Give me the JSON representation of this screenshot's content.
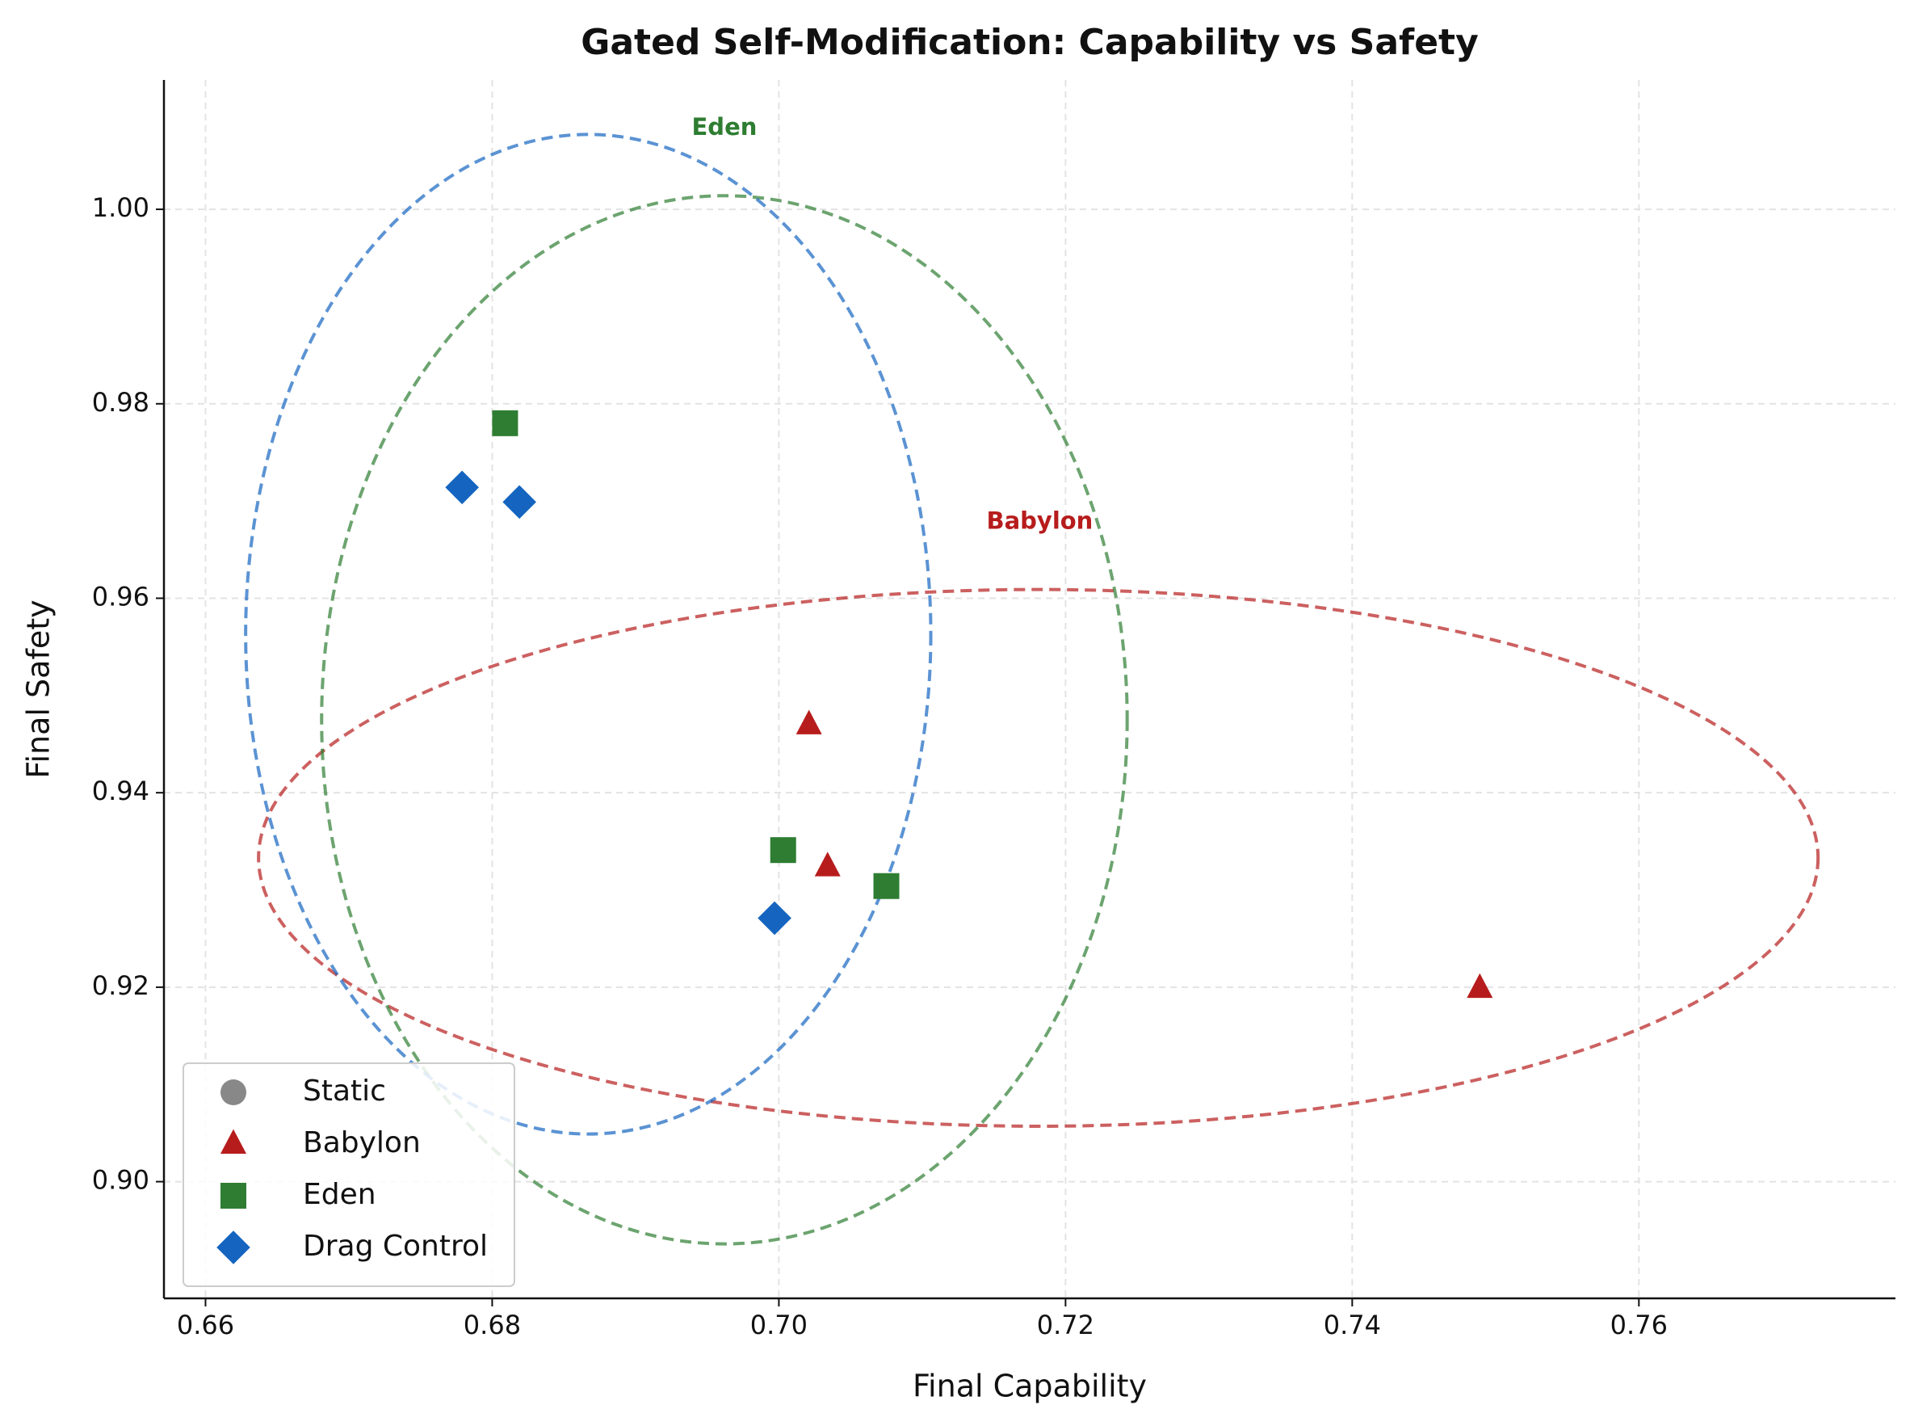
{
  "chart_data": {
    "type": "scatter",
    "title": "Gated Self-Modification: Capability vs Safety",
    "x_label": "Final Capability",
    "y_label": "Final Safety",
    "xlim": [
      0.6571,
      0.7779
    ],
    "ylim": [
      0.888,
      1.0133
    ],
    "xticks": [
      0.66,
      0.68,
      {
        "value": 0.7,
        "label": "0.70"
      },
      0.72,
      0.74,
      0.76
    ],
    "yticks": [
      {
        "value": 0.9,
        "label": "0.90"
      },
      0.92,
      0.94,
      0.96,
      0.98,
      {
        "value": 1.0,
        "label": "1.00"
      }
    ],
    "grid": true,
    "legend": "lower left",
    "series": [
      {
        "name": "Static",
        "color": "#888888",
        "marker": "circle",
        "x": [],
        "values": []
      },
      {
        "name": "Babylon",
        "color": "#b71c1c",
        "marker": "triangle",
        "x": [
          0.7021,
          0.7034,
          0.7489
        ],
        "values": [
          0.947,
          0.9324,
          0.9199
        ],
        "ellipse": {
          "cx": 0.7181,
          "cy": 0.9333,
          "rx": 0.0544,
          "ry": 0.0276
        }
      },
      {
        "name": "Eden",
        "color": "#2e7d32",
        "marker": "square",
        "x": [
          0.6809,
          0.7003,
          0.7075
        ],
        "values": [
          0.978,
          0.9341,
          0.9304
        ],
        "ellipse": {
          "cx": 0.6962,
          "cy": 0.9475,
          "rx": 0.0281,
          "ry": 0.0539
        }
      },
      {
        "name": "Drag Control",
        "color": "#1565c0",
        "marker": "diamond",
        "x": [
          0.6779,
          0.6819,
          0.6997
        ],
        "values": [
          0.9714,
          0.9699,
          0.9271
        ],
        "ellipse": {
          "cx": 0.6867,
          "cy": 0.9563,
          "rx": 0.0239,
          "ry": 0.0514
        }
      }
    ],
    "annotations": [
      {
        "text": "Eden",
        "x": 0.6962,
        "y": 1.0083,
        "color": "#2e7d32"
      },
      {
        "text": "Babylon",
        "x": 0.7182,
        "y": 0.9678,
        "color": "#b71c1c"
      }
    ]
  }
}
